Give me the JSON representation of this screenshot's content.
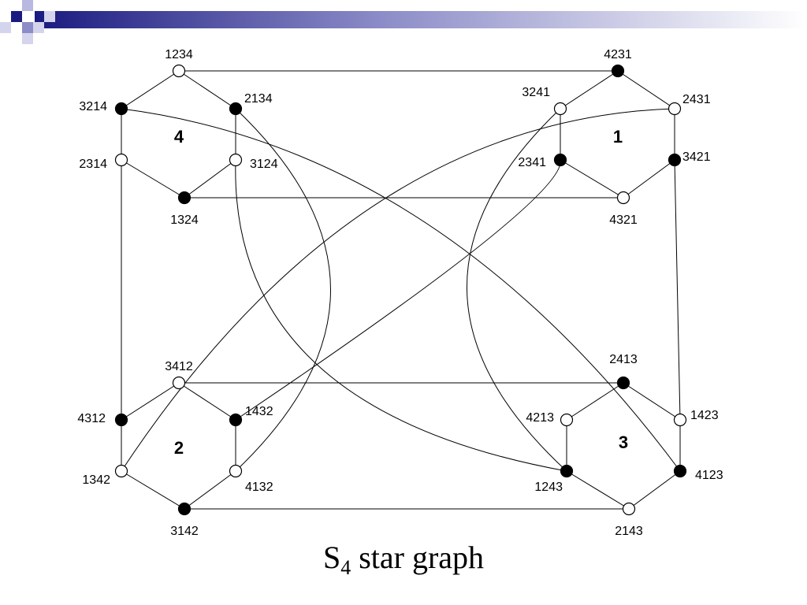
{
  "title": {
    "symbol": "S",
    "subscript": "4",
    "text": "star graph"
  },
  "clusters": [
    {
      "id": "c4",
      "label": "4"
    },
    {
      "id": "c1",
      "label": "1"
    },
    {
      "id": "c2",
      "label": "2"
    },
    {
      "id": "c3",
      "label": "3"
    }
  ],
  "nodes": [
    {
      "id": "1234",
      "label": "1234",
      "filled": false
    },
    {
      "id": "2134",
      "label": "2134",
      "filled": true
    },
    {
      "id": "3124",
      "label": "3124",
      "filled": false
    },
    {
      "id": "1324",
      "label": "1324",
      "filled": true
    },
    {
      "id": "2314",
      "label": "2314",
      "filled": false
    },
    {
      "id": "3214",
      "label": "3214",
      "filled": true
    },
    {
      "id": "4231",
      "label": "4231",
      "filled": true
    },
    {
      "id": "2431",
      "label": "2431",
      "filled": false
    },
    {
      "id": "3421",
      "label": "3421",
      "filled": true
    },
    {
      "id": "4321",
      "label": "4321",
      "filled": false
    },
    {
      "id": "2341",
      "label": "2341",
      "filled": true
    },
    {
      "id": "3241",
      "label": "3241",
      "filled": false
    },
    {
      "id": "3412",
      "label": "3412",
      "filled": false
    },
    {
      "id": "1432",
      "label": "1432",
      "filled": true
    },
    {
      "id": "4132",
      "label": "4132",
      "filled": false
    },
    {
      "id": "3142",
      "label": "3142",
      "filled": true
    },
    {
      "id": "1342",
      "label": "1342",
      "filled": false
    },
    {
      "id": "4312",
      "label": "4312",
      "filled": true
    },
    {
      "id": "2413",
      "label": "2413",
      "filled": true
    },
    {
      "id": "1423",
      "label": "1423",
      "filled": false
    },
    {
      "id": "4123",
      "label": "4123",
      "filled": true
    },
    {
      "id": "2143",
      "label": "2143",
      "filled": false
    },
    {
      "id": "1243",
      "label": "1243",
      "filled": true
    },
    {
      "id": "4213",
      "label": "4213",
      "filled": false
    }
  ],
  "edges": [
    [
      "1234",
      "2134"
    ],
    [
      "2134",
      "3124"
    ],
    [
      "3124",
      "1324"
    ],
    [
      "1324",
      "2314"
    ],
    [
      "2314",
      "3214"
    ],
    [
      "3214",
      "1234"
    ],
    [
      "4231",
      "2431"
    ],
    [
      "2431",
      "3421"
    ],
    [
      "3421",
      "4321"
    ],
    [
      "4321",
      "2341"
    ],
    [
      "2341",
      "3241"
    ],
    [
      "3241",
      "4231"
    ],
    [
      "3412",
      "1432"
    ],
    [
      "1432",
      "4132"
    ],
    [
      "4132",
      "3142"
    ],
    [
      "3142",
      "1342"
    ],
    [
      "1342",
      "4312"
    ],
    [
      "4312",
      "3412"
    ],
    [
      "2413",
      "1423"
    ],
    [
      "1423",
      "4123"
    ],
    [
      "4123",
      "2143"
    ],
    [
      "2143",
      "1243"
    ],
    [
      "1243",
      "4213"
    ],
    [
      "4213",
      "2413"
    ],
    [
      "1234",
      "4231"
    ],
    [
      "1324",
      "4321"
    ],
    [
      "3412",
      "2413"
    ],
    [
      "3142",
      "2143"
    ],
    [
      "2314",
      "4312"
    ],
    [
      "3421",
      "1423"
    ],
    [
      "2134",
      "4132"
    ],
    [
      "3214",
      "4123"
    ],
    [
      "3124",
      "1243"
    ],
    [
      "3241",
      "1243"
    ],
    [
      "2431",
      "1342"
    ],
    [
      "2341",
      "1432"
    ]
  ]
}
